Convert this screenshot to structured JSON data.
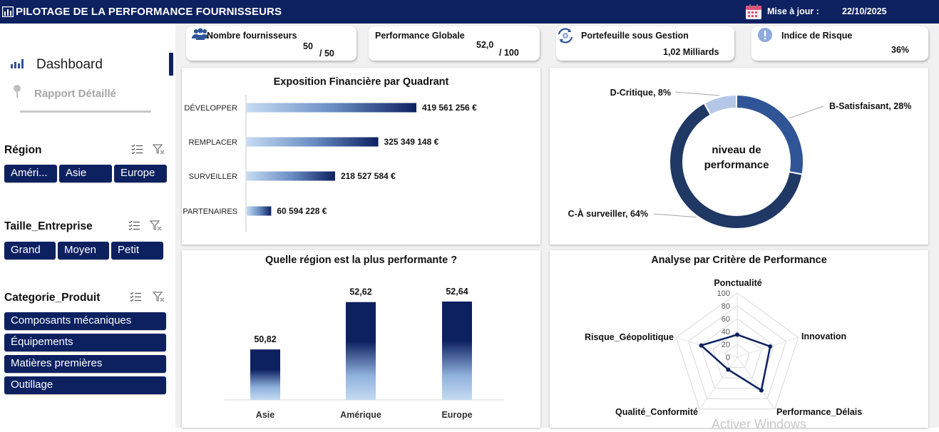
{
  "header": {
    "title": "PILOTAGE DE LA PERFORMANCE FOURNISSEURS",
    "update_label": "Mise à jour :",
    "update_date": "22/10/2025"
  },
  "nav": {
    "dashboard": "Dashboard",
    "report": "Rapport Détaillé"
  },
  "slicers": {
    "region": {
      "title": "Région",
      "items": [
        "Améri...",
        "Asie",
        "Europe"
      ]
    },
    "size": {
      "title": "Taille_Entreprise",
      "items": [
        "Grand",
        "Moyen",
        "Petit"
      ]
    },
    "category": {
      "title": "Categorie_Produit",
      "items": [
        "Composants mécaniques",
        "Équipements",
        "Matières premières",
        "Outillage"
      ]
    }
  },
  "kpis": {
    "suppliers": {
      "label": "Nombre fournisseurs",
      "value": "50",
      "suffix": "/ 50"
    },
    "performance": {
      "label": "Performance Globale",
      "value": "52,0",
      "suffix": "/ 100"
    },
    "portfolio": {
      "label": "Portefeuille sous Gestion",
      "value": "1,02 Milliards"
    },
    "risk": {
      "label": "Indice de Risque",
      "value": "36%"
    }
  },
  "colors": {
    "navy": "#0d2161",
    "donut_b": "#2f5597",
    "donut_c": "#203864",
    "donut_d": "#b4c7e7"
  },
  "chart_data": [
    {
      "type": "bar",
      "orientation": "horizontal",
      "title": "Exposition Financière par Quadrant",
      "categories": [
        "DÉVELOPPER",
        "REMPLACER",
        "SURVEILLER",
        "PARTENAIRES"
      ],
      "values": [
        419561256,
        325349148,
        218527584,
        60594228
      ],
      "labels": [
        "419 561 256 €",
        "325 349 148 €",
        "218 527 584 €",
        "60 594 228 €"
      ]
    },
    {
      "type": "pie",
      "variant": "donut",
      "center_text": [
        "niveau de",
        "performance"
      ],
      "slices": [
        {
          "label": "B-Satisfaisant, 28%",
          "value": 28
        },
        {
          "label": "C-À surveiller, 64%",
          "value": 64
        },
        {
          "label": "D-Critique, 8%",
          "value": 8
        }
      ]
    },
    {
      "type": "bar",
      "title": "Quelle région est la plus performante ?",
      "categories": [
        "Asie",
        "Amérique",
        "Europe"
      ],
      "values": [
        50.82,
        52.62,
        52.64
      ],
      "labels": [
        "50,82",
        "52,62",
        "52,64"
      ]
    },
    {
      "type": "radar",
      "title": "Analyse par Critère de Performance",
      "axes": [
        "Ponctualité",
        "Innovation",
        "Performance_Délais",
        "Qualité_Conformité",
        "Risque_Géopolitique"
      ],
      "values": [
        35,
        54,
        64,
        24,
        59
      ],
      "ticks": [
        "0",
        "20",
        "40",
        "60",
        "80",
        "100"
      ],
      "range": [
        0,
        100
      ]
    }
  ],
  "watermark": "Activer Windows"
}
